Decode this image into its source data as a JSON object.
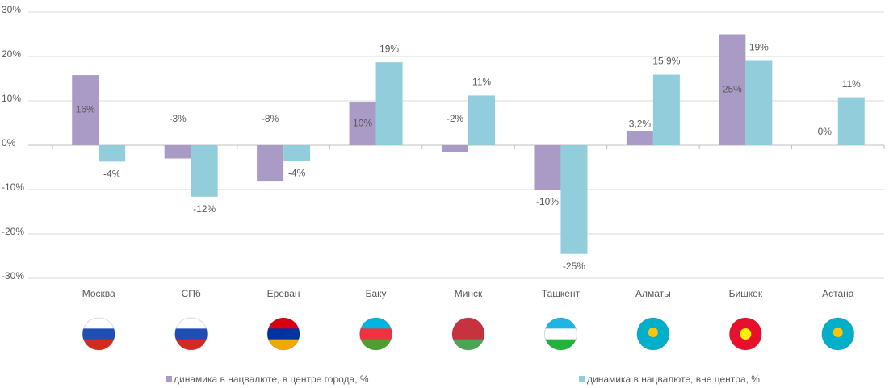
{
  "chart_data": {
    "type": "bar",
    "categories": [
      "Москва",
      "СПб",
      "Ереван",
      "Баку",
      "Минск",
      "Ташкент",
      "Алматы",
      "Бишкек",
      "Астана"
    ],
    "series": [
      {
        "name": "динамика в нацвалюте, в центре города, %",
        "color": "#a99bc6",
        "values": [
          15.8,
          -3,
          -8.2,
          9.7,
          -1.6,
          -10,
          3.2,
          25,
          0
        ],
        "value_labels": [
          "16%",
          "-3%",
          "-8%",
          "10%",
          "-2%",
          "-10%",
          "3,2%",
          "25%",
          "0%"
        ]
      },
      {
        "name": "динамика в нацвалюте, вне центра, %",
        "color": "#92cddc",
        "values": [
          -3.7,
          -11.6,
          -3.5,
          18.7,
          11.2,
          -24.5,
          15.9,
          19,
          10.8
        ],
        "value_labels": [
          "-4%",
          "-12%",
          "-4%",
          "19%",
          "11%",
          "-25%",
          "15,9%",
          "19%",
          "11%"
        ]
      }
    ],
    "ylim": [
      -30,
      30
    ],
    "yticks": [
      {
        "value": -30,
        "label": "-30%"
      },
      {
        "value": -20,
        "label": "-20%"
      },
      {
        "value": -10,
        "label": "-10%"
      },
      {
        "value": 0,
        "label": "0%"
      },
      {
        "value": 10,
        "label": "10%"
      },
      {
        "value": 20,
        "label": "20%"
      },
      {
        "value": 30,
        "label": "30%"
      }
    ],
    "grid": true
  }
}
